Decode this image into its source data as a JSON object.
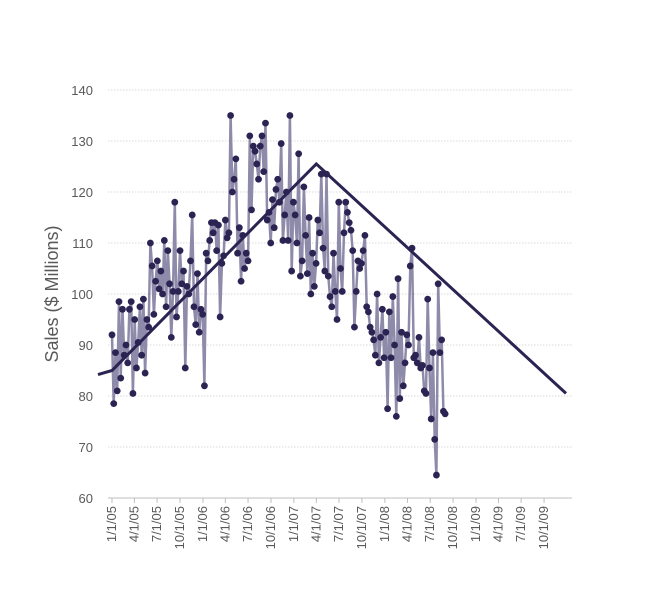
{
  "chart_data": {
    "type": "line",
    "title": "",
    "xlabel": "",
    "ylabel": "Sales ($ Millions)",
    "ylim": [
      60,
      140
    ],
    "yticks": [
      "60",
      "70",
      "80",
      "90",
      "100",
      "110",
      "120",
      "130",
      "140"
    ],
    "xticks": [
      "1/1/05",
      "4/1/05",
      "7/1/05",
      "10/1/05",
      "1/1/06",
      "4/1/06",
      "7/1/06",
      "10/1/06",
      "1/1/07",
      "4/1/07",
      "7/1/07",
      "10/1/07",
      "1/1/08",
      "4/1/08",
      "7/1/08",
      "10/1/08",
      "1/1/09",
      "4/1/09",
      "7/1/09",
      "10/1/09"
    ],
    "grid": true,
    "legend": "none",
    "x_start": "1/1/05",
    "x_unit": "weeks",
    "colors": {
      "series": "#8E8AAA",
      "points": "#2B2352",
      "trend": "#2B2352",
      "grid": "#D9D9D9",
      "axis": "#BFBFBF"
    },
    "series": [
      {
        "values": [
          92.0,
          78.5,
          88.5,
          81.0,
          98.5,
          83.5,
          97.0,
          88.0,
          90.0,
          86.5,
          97.0,
          98.5,
          80.5,
          95.0,
          85.5,
          90.5,
          97.5,
          88.0,
          99.0,
          84.5,
          95.0,
          93.5,
          110.0,
          105.5,
          96.0,
          102.5,
          106.5,
          101.0,
          104.5,
          100.0,
          110.5,
          97.5,
          108.5,
          102.0,
          91.5,
          100.5,
          118.0,
          95.5,
          100.5,
          108.5,
          102.0,
          104.5,
          85.5,
          101.5,
          100.0,
          106.5,
          115.5,
          97.5,
          94.0,
          104.0,
          92.5,
          97.0,
          96.0,
          82.0,
          108.0,
          106.5,
          110.5,
          114.0,
          112.0,
          114.0,
          108.5,
          113.5,
          95.5,
          106.0,
          107.5,
          114.5,
          111.0,
          112.0,
          135.0,
          120.0,
          122.5,
          126.5,
          108.0,
          113.0,
          102.5,
          111.5,
          105.0,
          108.0,
          106.5,
          131.0,
          116.5,
          129.0,
          128.0,
          125.5,
          122.5,
          129.0,
          131.0,
          124.0,
          133.5,
          114.5,
          116.0,
          110.0,
          118.5,
          113.0,
          120.5,
          122.5,
          118.0,
          129.5,
          110.5,
          115.5,
          120.0,
          110.5,
          135.0,
          104.5,
          118.0,
          115.5,
          110.0,
          127.5,
          103.5,
          106.5,
          121.0,
          111.5,
          104.0,
          115.0,
          100.0,
          108.0,
          101.5,
          106.0,
          114.5,
          112.0,
          123.5,
          109.0,
          104.5,
          123.5,
          103.5,
          99.5,
          97.5,
          108.0,
          100.5,
          95.0,
          118.0,
          105.0,
          100.5,
          112.0,
          118.0,
          116.0,
          114.0,
          112.5,
          108.5,
          93.5,
          100.5,
          106.5,
          105.0,
          106.0,
          108.5,
          111.5,
          97.5,
          96.5,
          93.5,
          92.5,
          91.0,
          88.0,
          100.0,
          86.5,
          91.5,
          97.0,
          87.5,
          92.5,
          77.5,
          96.5,
          87.5,
          99.5,
          90.0,
          76.0,
          103.0,
          79.5,
          92.5,
          82.0,
          86.5,
          92.0,
          90.0,
          105.5,
          109.0,
          87.5,
          88.0,
          86.5,
          91.5,
          85.5,
          86.0,
          81.0,
          80.5,
          99.0,
          85.5,
          75.5,
          88.5,
          71.5,
          64.5,
          102.0,
          88.5,
          91.0,
          77.0,
          76.5
        ]
      }
    ],
    "trend": {
      "points": [
        {
          "x": "1/1/05",
          "y": 85.0
        },
        {
          "x": "4/1/07",
          "y": 125.5
        },
        {
          "x": "12/28/09",
          "y": 80.5
        }
      ]
    }
  }
}
